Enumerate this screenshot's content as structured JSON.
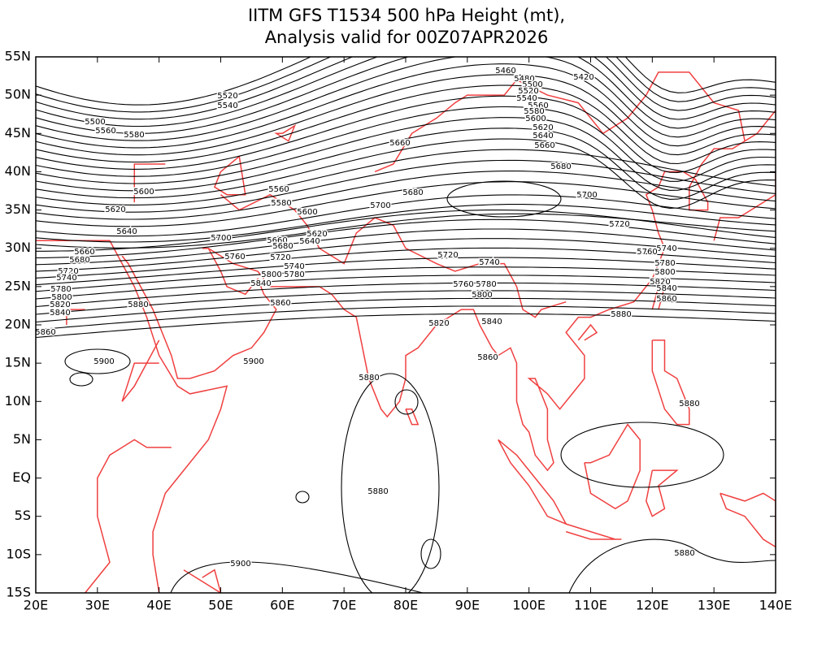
{
  "header": {
    "title": "IITM GFS T1534 500 hPa Height (mt),",
    "subtitle": "Analysis valid for 00Z07APR2026"
  },
  "x_axis": {
    "ticks": [
      {
        "value": 20,
        "label": "20E"
      },
      {
        "value": 30,
        "label": "30E"
      },
      {
        "value": 40,
        "label": "40E"
      },
      {
        "value": 50,
        "label": "50E"
      },
      {
        "value": 60,
        "label": "60E"
      },
      {
        "value": 70,
        "label": "70E"
      },
      {
        "value": 80,
        "label": "80E"
      },
      {
        "value": 90,
        "label": "90E"
      },
      {
        "value": 100,
        "label": "100E"
      },
      {
        "value": 110,
        "label": "110E"
      },
      {
        "value": 120,
        "label": "120E"
      },
      {
        "value": 130,
        "label": "130E"
      },
      {
        "value": 140,
        "label": "140E"
      }
    ]
  },
  "y_axis": {
    "ticks": [
      {
        "value": 55,
        "label": "55N"
      },
      {
        "value": 50,
        "label": "50N"
      },
      {
        "value": 45,
        "label": "45N"
      },
      {
        "value": 40,
        "label": "40N"
      },
      {
        "value": 35,
        "label": "35N"
      },
      {
        "value": 30,
        "label": "30N"
      },
      {
        "value": 25,
        "label": "25N"
      },
      {
        "value": 20,
        "label": "20N"
      },
      {
        "value": 15,
        "label": "15N"
      },
      {
        "value": 10,
        "label": "10N"
      },
      {
        "value": 5,
        "label": "5N"
      },
      {
        "value": 0,
        "label": "EQ"
      },
      {
        "value": -5,
        "label": "5S"
      },
      {
        "value": -10,
        "label": "10S"
      },
      {
        "value": -15,
        "label": "15S"
      }
    ]
  },
  "contour_labels": [
    5520,
    5540,
    5560,
    5580,
    5600,
    5620,
    5640,
    5660,
    5680,
    5720,
    5740,
    5780,
    5800,
    5820,
    5840,
    5860,
    5880,
    5900,
    5900,
    5880,
    5880,
    5900,
    5560,
    5580,
    5600,
    5620,
    5640,
    5660,
    5680,
    5700,
    5720,
    5740,
    5760,
    5780,
    5800,
    5840,
    5860,
    5660,
    5680,
    5700,
    5720,
    5740,
    5760,
    5780,
    5800,
    5820,
    5840,
    5860,
    5460,
    5480,
    5500,
    5520,
    5540,
    5560,
    5580,
    5600,
    5620,
    5640,
    5660,
    5680,
    5700,
    5720,
    5740,
    5760,
    5780,
    5800,
    5820,
    5840,
    5860,
    5880,
    5880,
    5880,
    5420,
    5500
  ]
}
